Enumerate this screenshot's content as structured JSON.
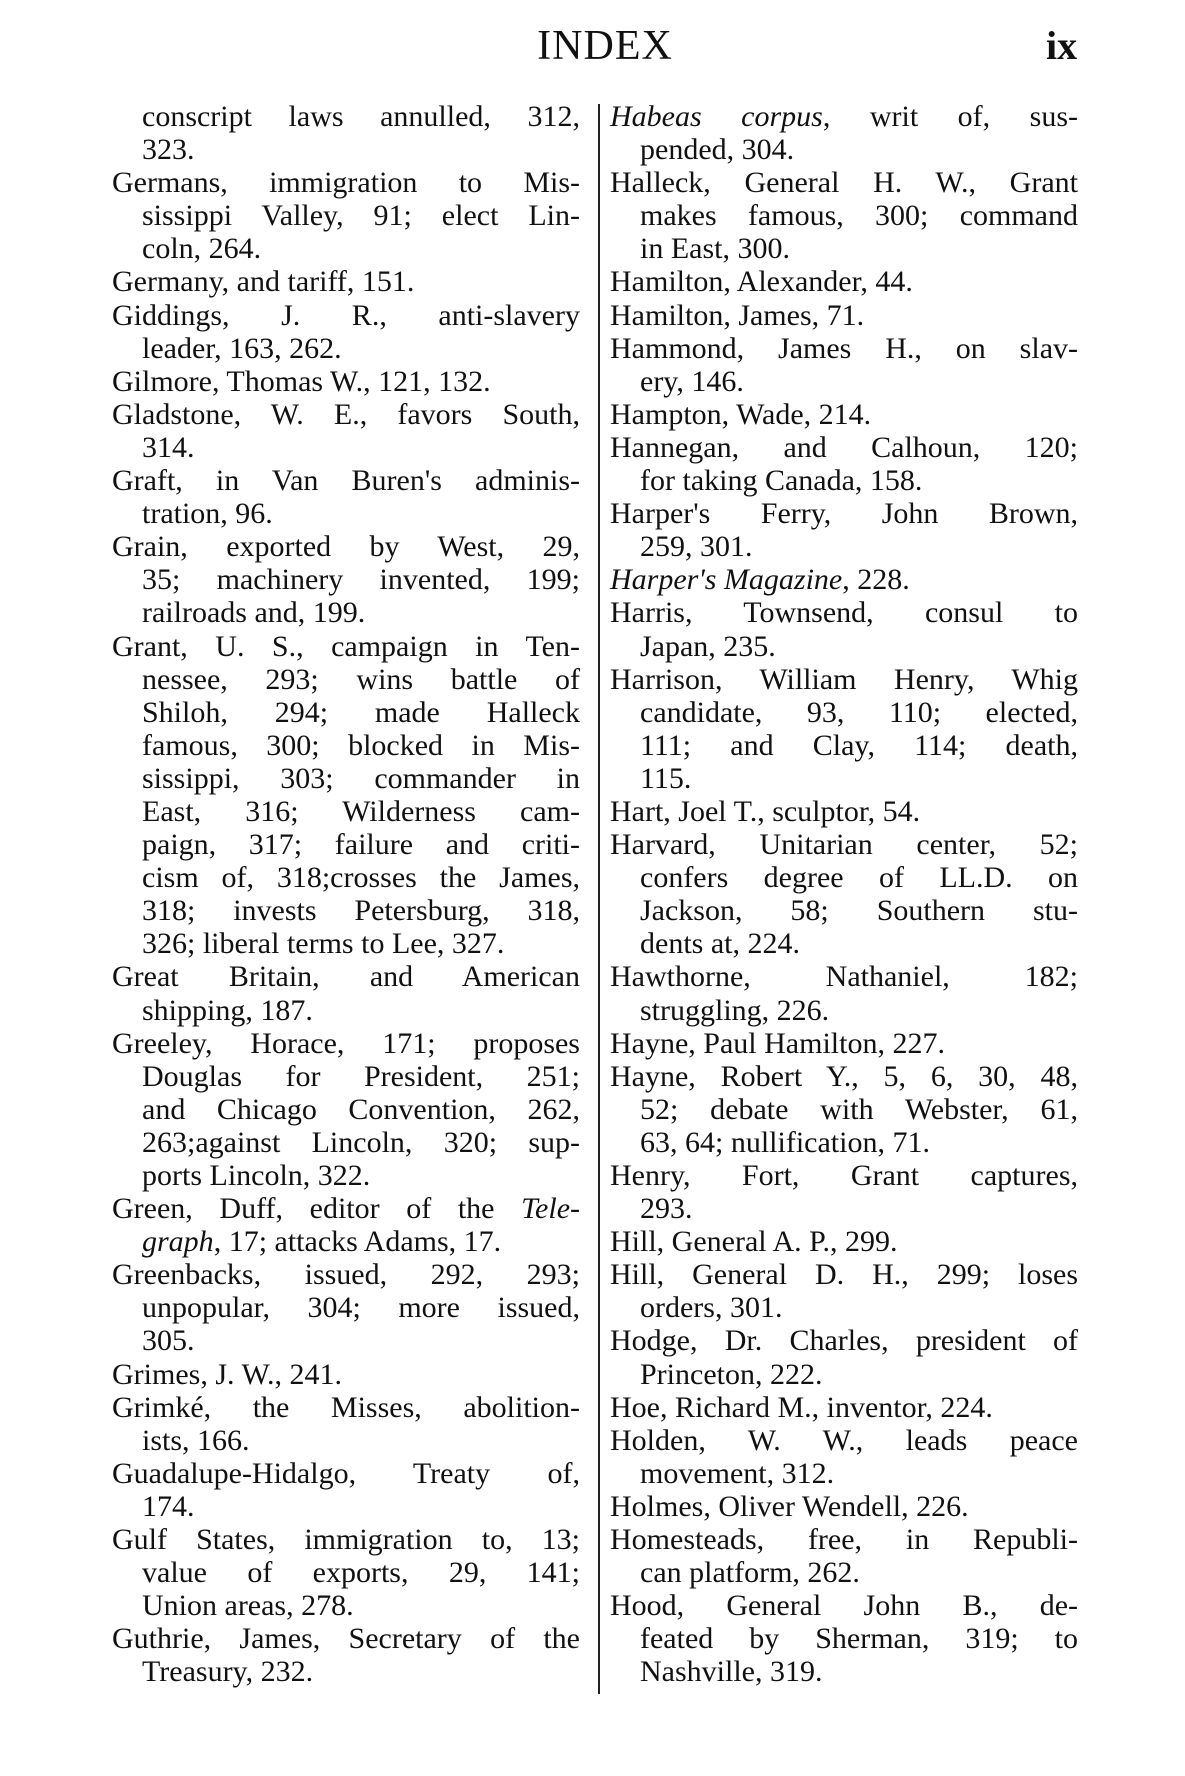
{
  "header": {
    "title": "INDEX",
    "page_number": "ix"
  },
  "columns": [
    {
      "entries": [
        {
          "continued": true,
          "lines": [
            "conscript laws annulled, 312,",
            "323."
          ]
        },
        {
          "lines": [
            "Germans, immigration to Mis-",
            "sissippi Valley, 91; elect Lin-",
            "coln, 264."
          ]
        },
        {
          "lines": [
            "Germany, and tariff, 151."
          ]
        },
        {
          "lines": [
            "Giddings, J. R., anti-slavery",
            "leader, 163, 262."
          ]
        },
        {
          "lines": [
            "Gilmore, Thomas W., 121, 132."
          ]
        },
        {
          "lines": [
            "Gladstone, W. E., favors South,",
            "314."
          ]
        },
        {
          "lines": [
            "Graft, in Van Buren's adminis-",
            "tration, 96."
          ]
        },
        {
          "lines": [
            "Grain, exported by West, 29,",
            "35; machinery invented, 199;",
            "railroads and, 199."
          ]
        },
        {
          "lines": [
            "Grant, U. S., campaign in Ten-",
            "nessee, 293; wins battle of",
            "Shiloh, 294; made Halleck",
            "famous, 300; blocked in Mis-",
            "sissippi, 303; commander in",
            "East, 316; Wilderness cam-",
            "paign, 317; failure and criti-",
            "cism of, 318;crosses the James,",
            "318; invests Petersburg, 318,",
            "326; liberal terms to Lee, 327."
          ]
        },
        {
          "lines": [
            "Great Britain, and American",
            "shipping, 187."
          ]
        },
        {
          "lines": [
            "Greeley, Horace, 171; proposes",
            "Douglas for President, 251;",
            "and Chicago Convention, 262,",
            "263;against Lincoln, 320; sup-",
            "ports Lincoln, 322."
          ]
        },
        {
          "lines": [
            [
              "Green, Duff, editor of the ",
              {
                "italic": "Tele-"
              }
            ],
            [
              {
                "italic": "graph"
              },
              ", 17; attacks Adams, 17."
            ]
          ]
        },
        {
          "lines": [
            "Greenbacks, issued, 292, 293;",
            "unpopular, 304; more issued,",
            "305."
          ]
        },
        {
          "lines": [
            "Grimes, J. W., 241."
          ]
        },
        {
          "lines": [
            "Grimké, the Misses, abolition-",
            "ists, 166."
          ]
        },
        {
          "lines": [
            "Guadalupe-Hidalgo, Treaty of,",
            "174."
          ]
        },
        {
          "lines": [
            "Gulf States, immigration to, 13;",
            "value of exports, 29, 141;",
            "Union areas, 278."
          ]
        },
        {
          "lines": [
            "Guthrie, James, Secretary of the",
            "Treasury, 232."
          ]
        }
      ]
    },
    {
      "entries": [
        {
          "lines": [
            [
              {
                "italic": "Habeas corpus"
              },
              ", writ of, sus-"
            ],
            "pended, 304."
          ]
        },
        {
          "lines": [
            "Halleck, General H. W., Grant",
            "makes famous, 300; command",
            "in East, 300."
          ]
        },
        {
          "lines": [
            "Hamilton, Alexander, 44."
          ]
        },
        {
          "lines": [
            "Hamilton, James, 71."
          ]
        },
        {
          "lines": [
            "Hammond, James H., on slav-",
            "ery, 146."
          ]
        },
        {
          "lines": [
            "Hampton, Wade, 214."
          ]
        },
        {
          "lines": [
            "Hannegan, and Calhoun, 120;",
            "for taking Canada, 158."
          ]
        },
        {
          "lines": [
            "Harper's Ferry, John Brown,",
            "259, 301."
          ]
        },
        {
          "lines": [
            [
              {
                "italic": "Harper's Magazine"
              },
              ", 228."
            ]
          ]
        },
        {
          "lines": [
            "Harris, Townsend, consul to",
            "Japan, 235."
          ]
        },
        {
          "lines": [
            "Harrison, William Henry, Whig",
            "candidate, 93, 110; elected,",
            "111; and Clay, 114; death,",
            "115."
          ]
        },
        {
          "lines": [
            "Hart, Joel T., sculptor, 54."
          ]
        },
        {
          "lines": [
            "Harvard, Unitarian center, 52;",
            "confers degree of LL.D. on",
            "Jackson, 58; Southern stu-",
            "dents at, 224."
          ]
        },
        {
          "lines": [
            "Hawthorne, Nathaniel, 182;",
            "struggling, 226."
          ]
        },
        {
          "lines": [
            "Hayne, Paul Hamilton, 227."
          ]
        },
        {
          "lines": [
            "Hayne, Robert Y., 5, 6, 30, 48,",
            "52; debate with Webster, 61,",
            "63, 64; nullification, 71."
          ]
        },
        {
          "lines": [
            "Henry, Fort, Grant captures,",
            "293."
          ]
        },
        {
          "lines": [
            "Hill, General A. P., 299."
          ]
        },
        {
          "lines": [
            "Hill, General D. H., 299; loses",
            "orders, 301."
          ]
        },
        {
          "lines": [
            "Hodge, Dr. Charles, president of",
            "Princeton, 222."
          ]
        },
        {
          "lines": [
            "Hoe, Richard M., inventor, 224."
          ]
        },
        {
          "lines": [
            "Holden, W. W., leads peace",
            "movement, 312."
          ]
        },
        {
          "lines": [
            "Holmes, Oliver Wendell, 226."
          ]
        },
        {
          "lines": [
            "Homesteads, free, in Republi-",
            "can platform, 262."
          ]
        },
        {
          "lines": [
            "Hood, General John B., de-",
            "feated by Sherman, 319; to",
            "Nashville, 319."
          ]
        }
      ]
    }
  ]
}
